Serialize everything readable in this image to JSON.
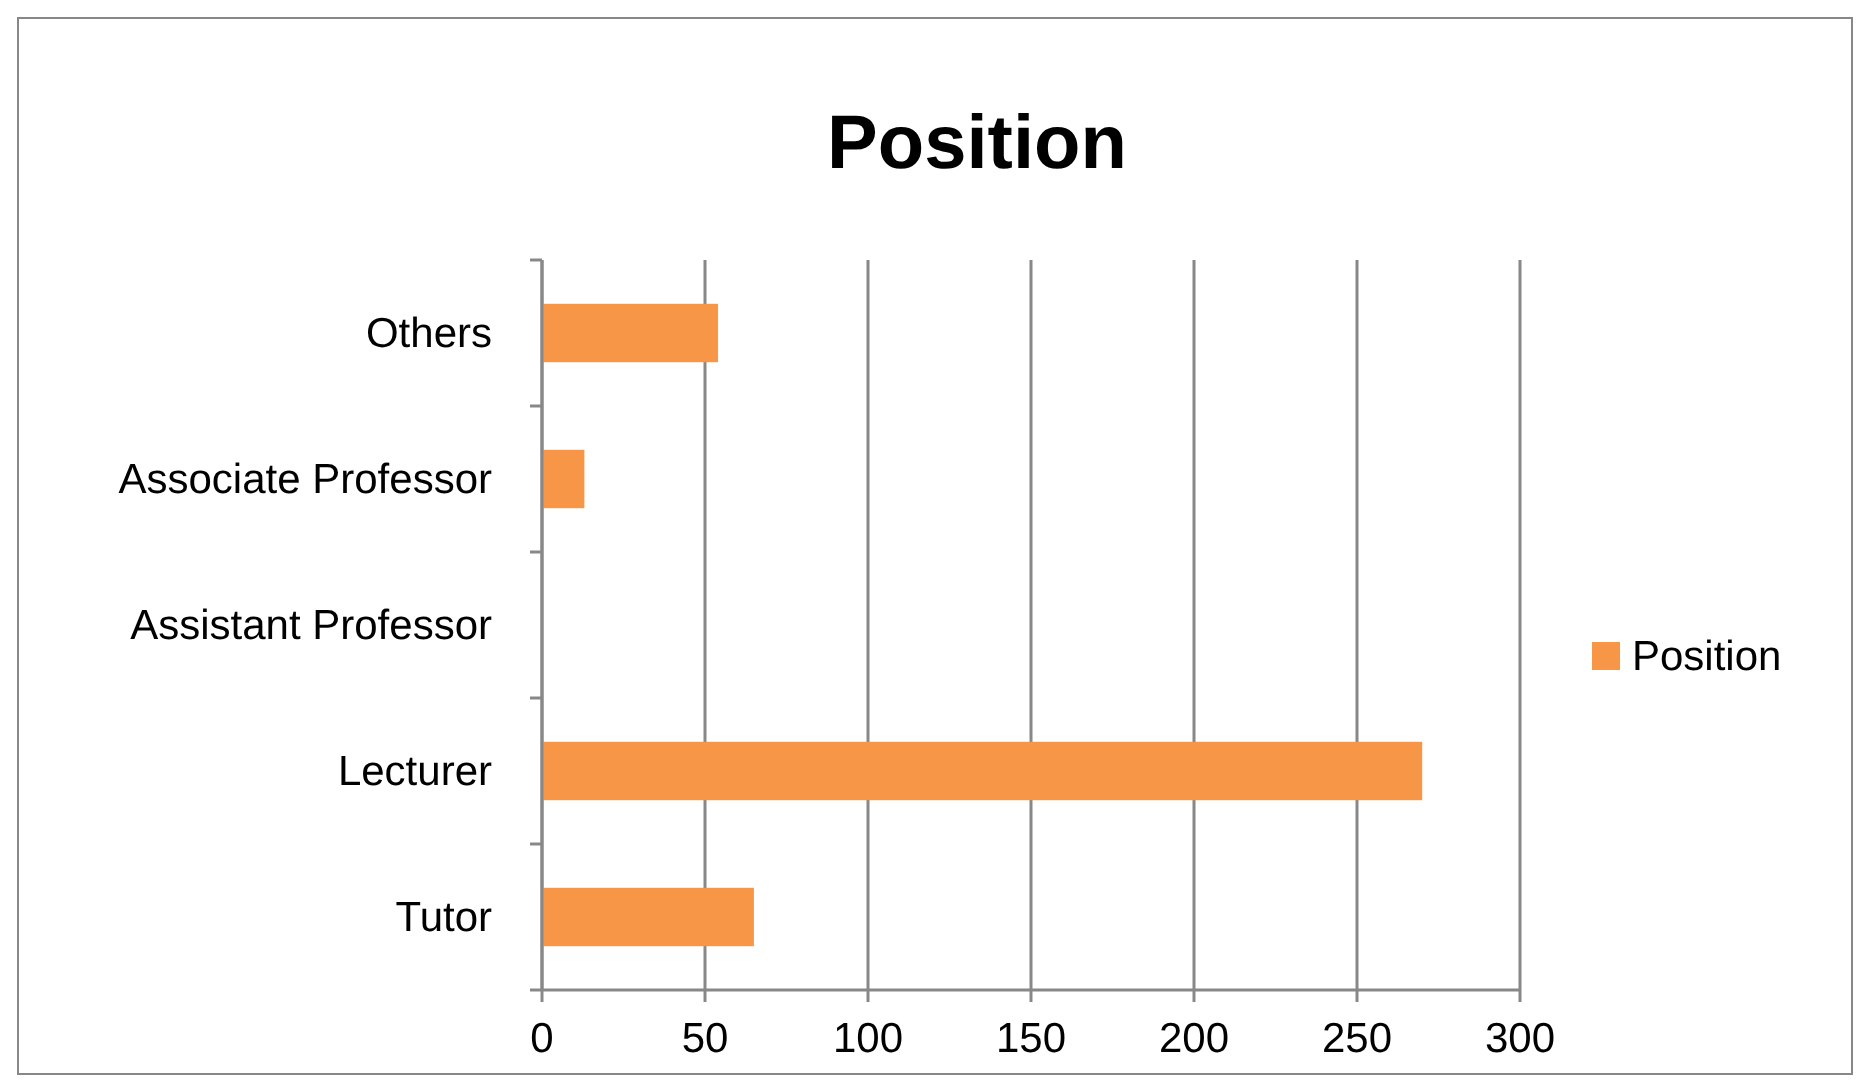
{
  "chart_data": {
    "type": "bar",
    "title": "Position",
    "orientation": "horizontal",
    "categories": [
      "Others",
      "Associate Professor",
      "Assistant Professor",
      "Lecturer",
      "Tutor"
    ],
    "series": [
      {
        "name": "Position",
        "color": "#f79646",
        "values": [
          54,
          13,
          0,
          270,
          65
        ]
      }
    ],
    "xlim": [
      0,
      300
    ],
    "xticks": [
      0,
      50,
      100,
      150,
      200,
      250,
      300
    ],
    "grid": "x",
    "legend": "right"
  }
}
